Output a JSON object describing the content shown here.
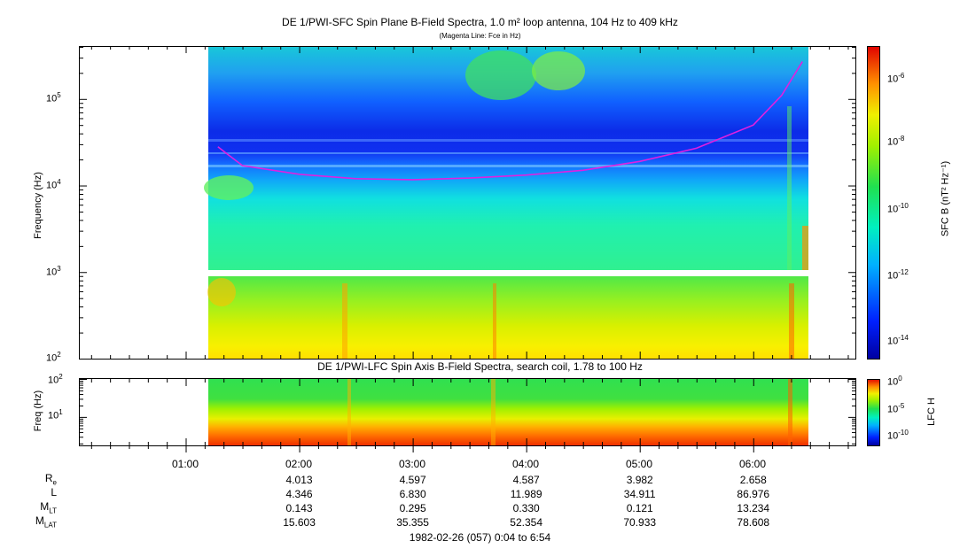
{
  "chart_data": [
    {
      "type": "heatmap",
      "title": "DE 1/PWI-SFC  Spin Plane B-Field Spectra, 1.0 m² loop antenna, 104 Hz to 409 kHz",
      "subtitle": "(Magenta Line: Fce in Hz)",
      "ylabel": "Frequency (Hz)",
      "yscale": "log",
      "ylim": [
        100,
        409000
      ],
      "y_ticks": [
        "10^2",
        "10^3",
        "10^4",
        "10^5"
      ],
      "colorbar_label": "SFC B (nT² Hz⁻¹)",
      "colorbar_scale": "log",
      "colorbar_range": [
        1e-15,
        1e-05
      ],
      "colorbar_ticks": [
        "10^-6",
        "10^-8",
        "10^-10",
        "10^-12",
        "10^-14"
      ],
      "data_coverage": "01:17 to 06:26",
      "magenta_line_fce": {
        "x": [
          "01:17",
          "01:30",
          "02:00",
          "02:30",
          "03:00",
          "03:30",
          "04:00",
          "04:30",
          "05:00",
          "05:30",
          "06:00",
          "06:15",
          "06:26"
        ],
        "y": [
          28000,
          17000,
          13500,
          12000,
          11700,
          12200,
          13200,
          15000,
          19000,
          27000,
          50000,
          110000,
          270000
        ]
      }
    },
    {
      "type": "heatmap",
      "title": "DE 1/PWI-LFC  Spin Axis B-Field Spectra, search coil, 1.78 to 100 Hz",
      "ylabel": "Freq (Hz)",
      "yscale": "log",
      "ylim": [
        1.78,
        100
      ],
      "y_ticks": [
        "10^1",
        "10^2"
      ],
      "colorbar_label": "LFC H",
      "colorbar_scale": "log",
      "colorbar_ticks": [
        "10^0",
        "10^-5",
        "10^-10"
      ],
      "data_coverage": "01:17 to 06:26"
    }
  ],
  "x_axis": {
    "start": "00:04",
    "end": "06:54",
    "labels": [
      "01:00",
      "02:00",
      "03:00",
      "04:00",
      "05:00",
      "06:00"
    ]
  },
  "ephemeris": {
    "rows": [
      {
        "name": "R",
        "sub": "e",
        "values": [
          "4.013",
          "4.597",
          "4.587",
          "3.982",
          "2.658"
        ]
      },
      {
        "name": "L",
        "sub": "",
        "values": [
          "4.346",
          "6.830",
          "11.989",
          "34.911",
          "86.976"
        ]
      },
      {
        "name": "M",
        "sub": "LT",
        "values": [
          "0.143",
          "0.295",
          "0.330",
          "0.121",
          "13.234"
        ]
      },
      {
        "name": "M",
        "sub": "LAT",
        "values": [
          "15.603",
          "35.355",
          "52.354",
          "70.933",
          "78.608"
        ]
      }
    ]
  },
  "footer": "1982-02-26 (057) 0:04 to 6:54",
  "colors": {
    "fce_line": "#e020e0"
  }
}
